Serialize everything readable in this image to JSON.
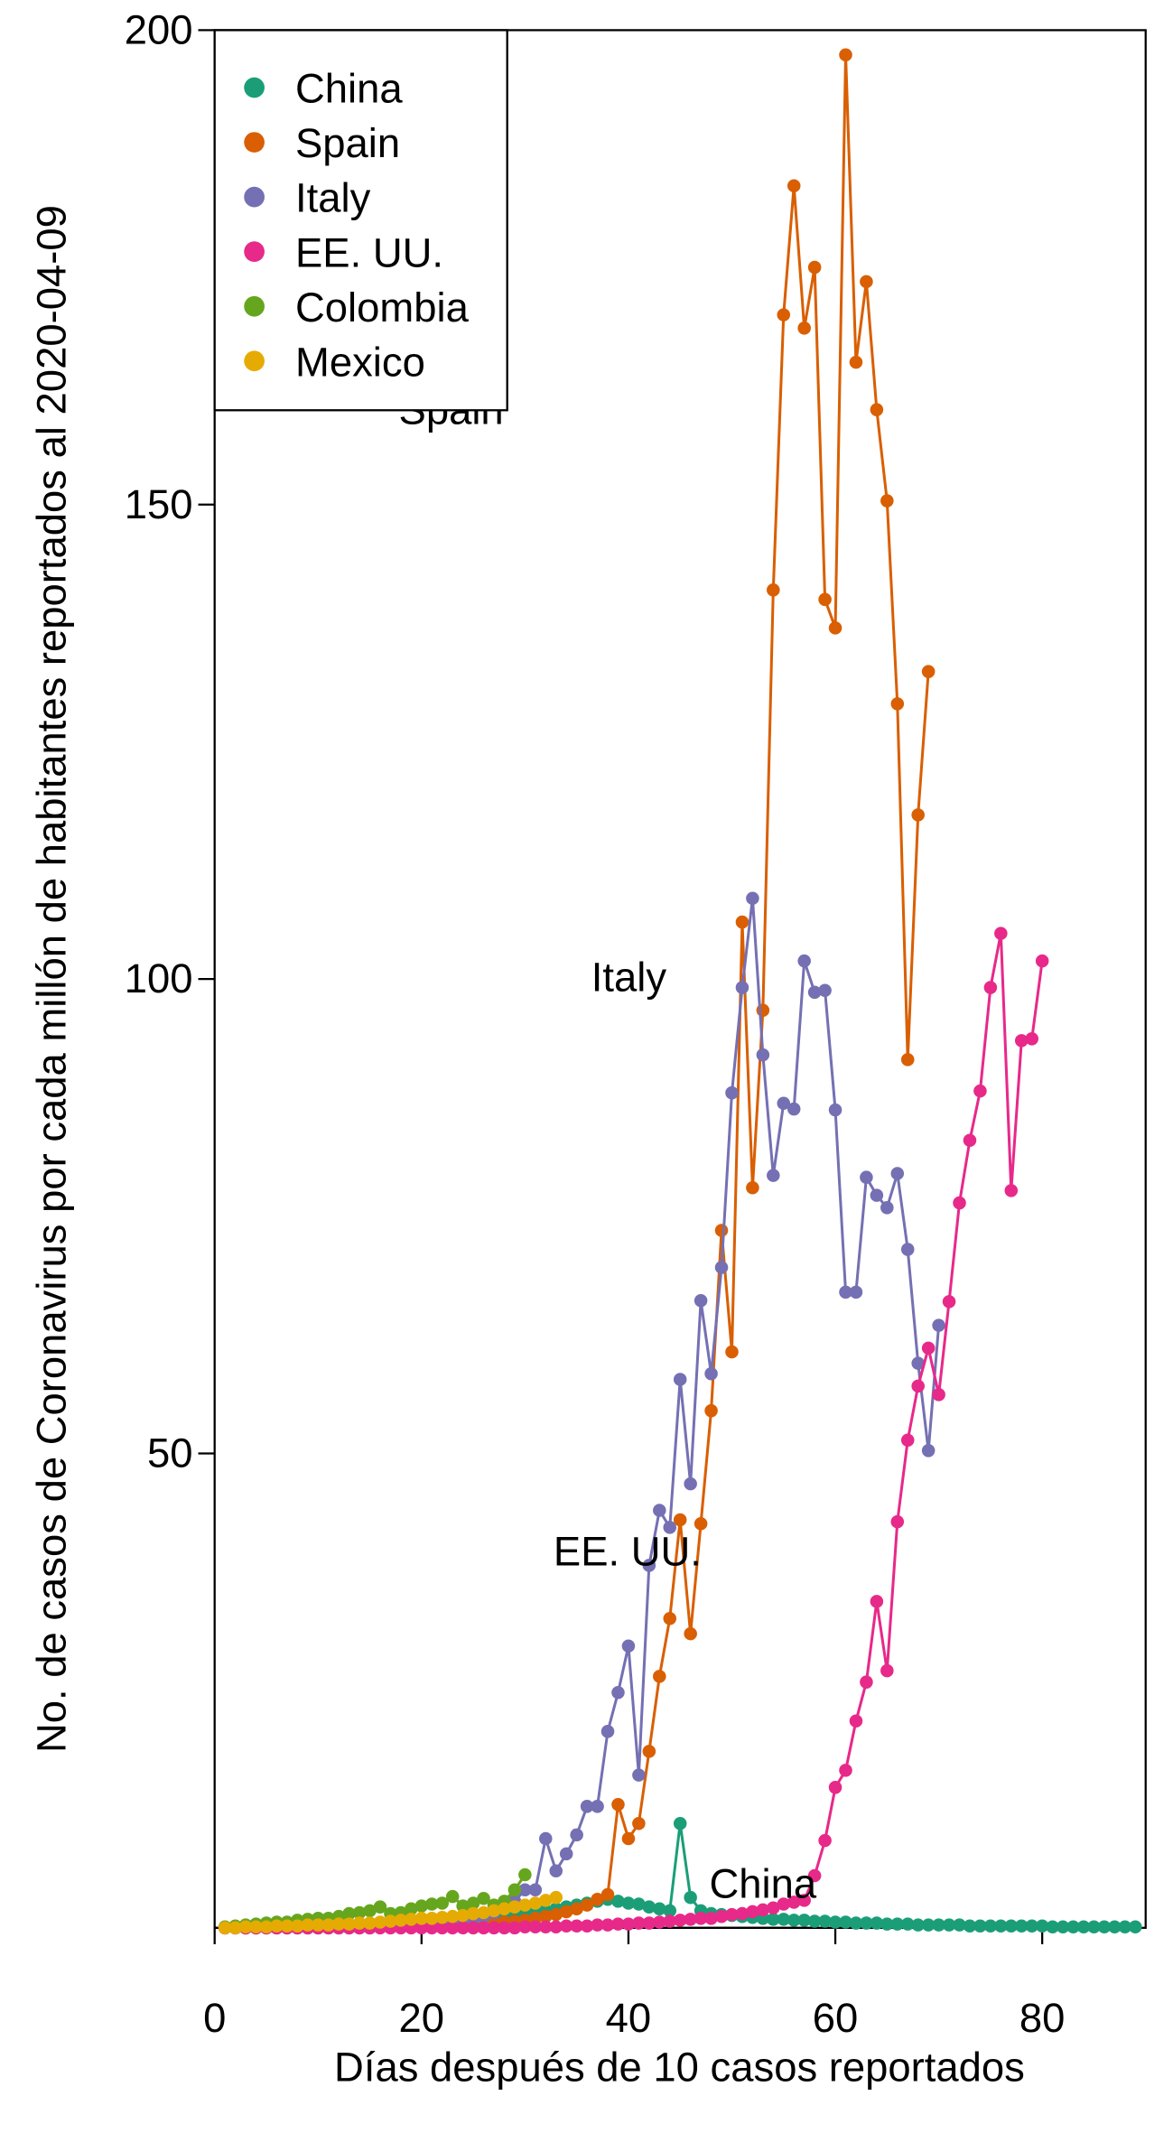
{
  "chart_data": {
    "type": "line",
    "xlabel": "Días después de 10 casos reportados",
    "ylabel": "No. de casos de Coronavirus por cada millón de habitantes reportados al 2020-04-09",
    "xlim": [
      0,
      90
    ],
    "xticks": [
      0,
      20,
      40,
      60,
      80
    ],
    "ylim": [
      0,
      200
    ],
    "yticks": [
      50,
      100,
      150,
      200
    ],
    "legend": "topleft",
    "annotations": [
      "Spain",
      "Italy",
      "EE. UU.",
      "China"
    ],
    "series": [
      {
        "name": "China",
        "color": "#1b9e77",
        "x": [
          1,
          2,
          3,
          4,
          5,
          6,
          7,
          8,
          9,
          10,
          11,
          12,
          13,
          14,
          15,
          16,
          17,
          18,
          19,
          20,
          21,
          22,
          23,
          24,
          25,
          26,
          27,
          28,
          29,
          30,
          31,
          32,
          33,
          34,
          35,
          36,
          37,
          38,
          39,
          40,
          41,
          42,
          43,
          44,
          45,
          46,
          47,
          48,
          49,
          50,
          51,
          52,
          53,
          54,
          55,
          56,
          57,
          58,
          59,
          60,
          61,
          62,
          63,
          64,
          65,
          66,
          67,
          68,
          69,
          70,
          71,
          72,
          73,
          74,
          75,
          76,
          77,
          78,
          79,
          80,
          81,
          82,
          83,
          84,
          85,
          86,
          87,
          88,
          89
        ],
        "values": [
          0,
          0,
          0,
          0,
          0.1,
          0.1,
          0.1,
          0.1,
          0.1,
          0.2,
          0.2,
          0.2,
          0.3,
          0.3,
          0.3,
          0.4,
          0.4,
          0.5,
          0.5,
          0.6,
          0.7,
          0.8,
          0.9,
          1,
          1,
          1.1,
          1.2,
          1.3,
          1.4,
          1.5,
          1.7,
          1.8,
          2,
          2.2,
          2.4,
          2.6,
          2.8,
          3,
          2.8,
          2.6,
          2.5,
          2.2,
          2,
          1.8,
          11,
          3.2,
          1.8,
          1.5,
          1.4,
          1.3,
          1.2,
          1.1,
          1,
          0.9,
          0.9,
          0.8,
          0.8,
          0.7,
          0.7,
          0.6,
          0.6,
          0.5,
          0.5,
          0.5,
          0.4,
          0.4,
          0.4,
          0.3,
          0.3,
          0.3,
          0.3,
          0.3,
          0.2,
          0.2,
          0.2,
          0.2,
          0.2,
          0.2,
          0.2,
          0.2,
          0.1,
          0.1,
          0.1,
          0.1,
          0.1,
          0.1,
          0.1,
          0.1,
          0.1
        ]
      },
      {
        "name": "Spain",
        "color": "#d95f02",
        "x": [
          1,
          2,
          3,
          4,
          5,
          6,
          7,
          8,
          9,
          10,
          11,
          12,
          13,
          14,
          15,
          16,
          17,
          18,
          19,
          20,
          21,
          22,
          23,
          24,
          25,
          26,
          27,
          28,
          29,
          30,
          31,
          32,
          33,
          34,
          35,
          36,
          37,
          38,
          39,
          40,
          41,
          42,
          43,
          44,
          45,
          46,
          47,
          48,
          49,
          50,
          51,
          52,
          53,
          54,
          55,
          56,
          57,
          58,
          59,
          60,
          61,
          62,
          63,
          64,
          65,
          66,
          67,
          68,
          69
        ],
        "values": [
          0,
          0,
          0,
          0,
          0,
          0,
          0,
          0,
          0,
          0,
          0,
          0,
          0.1,
          0.1,
          0.1,
          0.1,
          0.1,
          0.1,
          0.1,
          0.2,
          0.2,
          0.2,
          0.3,
          0.3,
          0.3,
          0.4,
          0.5,
          0.6,
          0.7,
          0.8,
          1,
          1.2,
          1.4,
          1.7,
          2,
          2.4,
          3,
          3.5,
          13,
          9.4,
          11,
          18.6,
          26.5,
          32.6,
          43,
          31,
          42.6,
          54.5,
          73.5,
          60.7,
          106,
          78,
          96.7,
          141,
          170,
          183.6,
          168.6,
          175,
          140,
          137,
          197.4,
          165,
          173.5,
          160,
          150.4,
          129,
          91.5,
          117.3,
          132.4
        ]
      },
      {
        "name": "Italy",
        "color": "#7570b3",
        "x": [
          1,
          2,
          3,
          4,
          5,
          6,
          7,
          8,
          9,
          10,
          11,
          12,
          13,
          14,
          15,
          16,
          17,
          18,
          19,
          20,
          21,
          22,
          23,
          24,
          25,
          26,
          27,
          28,
          29,
          30,
          31,
          32,
          33,
          34,
          35,
          36,
          37,
          38,
          39,
          40,
          41,
          42,
          43,
          44,
          45,
          46,
          47,
          48,
          49,
          50,
          51,
          52,
          53,
          54,
          55,
          56,
          57,
          58,
          59,
          60,
          61,
          62,
          63,
          64,
          65,
          66,
          67,
          68,
          69,
          70
        ],
        "values": [
          0,
          0,
          0,
          0,
          0,
          0,
          0,
          0,
          0,
          0,
          0,
          0,
          0,
          0,
          0,
          0.1,
          0.1,
          0.1,
          0.2,
          0.2,
          0.3,
          0.4,
          0.5,
          0.7,
          0.9,
          1.2,
          1.6,
          2.1,
          2.8,
          4,
          4,
          9.4,
          6,
          7.8,
          9.8,
          12.8,
          12.8,
          20.7,
          24.8,
          29.7,
          16.1,
          38.2,
          44,
          42.2,
          57.8,
          46.8,
          66.1,
          58.4,
          69.6,
          88,
          99.1,
          108.5,
          92,
          79.3,
          86.9,
          86.3,
          101.9,
          98.6,
          98.8,
          86.2,
          67,
          67,
          79.1,
          77.2,
          75.9,
          79.5,
          71.5,
          59.5,
          50.3,
          63.5
        ]
      },
      {
        "name": "EE. UU.",
        "color": "#e7298a",
        "x": [
          1,
          2,
          3,
          4,
          5,
          6,
          7,
          8,
          9,
          10,
          11,
          12,
          13,
          14,
          15,
          16,
          17,
          18,
          19,
          20,
          21,
          22,
          23,
          24,
          25,
          26,
          27,
          28,
          29,
          30,
          31,
          32,
          33,
          34,
          35,
          36,
          37,
          38,
          39,
          40,
          41,
          42,
          43,
          44,
          45,
          46,
          47,
          48,
          49,
          50,
          51,
          52,
          53,
          54,
          55,
          56,
          57,
          58,
          59,
          60,
          61,
          62,
          63,
          64,
          65,
          66,
          67,
          68,
          69,
          70,
          71,
          72,
          73,
          74,
          75,
          76,
          77,
          78,
          79,
          80
        ],
        "values": [
          0,
          0,
          0,
          0,
          0,
          0,
          0,
          0,
          0,
          0,
          0,
          0,
          0,
          0,
          0,
          0,
          0,
          0,
          0,
          0,
          0,
          0,
          0,
          0,
          0,
          0,
          0,
          0,
          0,
          0.1,
          0.1,
          0.1,
          0.1,
          0.2,
          0.2,
          0.2,
          0.3,
          0.3,
          0.4,
          0.4,
          0.5,
          0.5,
          0.6,
          0.7,
          0.8,
          0.9,
          1,
          1,
          1.2,
          1.4,
          1.5,
          1.7,
          1.9,
          2.1,
          2.5,
          2.7,
          2.9,
          5.5,
          9.2,
          14.8,
          16.6,
          21.8,
          25.9,
          34.4,
          27.1,
          42.8,
          51.4,
          57.1,
          61.1,
          56.2,
          66,
          76.4,
          83,
          88.2,
          99.1,
          104.8,
          77.7,
          93.5,
          93.7,
          101.9
        ]
      },
      {
        "name": "Colombia",
        "color": "#66a61e",
        "x": [
          1,
          2,
          3,
          4,
          5,
          6,
          7,
          8,
          9,
          10,
          11,
          12,
          13,
          14,
          15,
          16,
          17,
          18,
          19,
          20,
          21,
          22,
          23,
          24,
          25,
          26,
          27,
          28,
          29,
          30
        ],
        "values": [
          0.1,
          0.2,
          0.3,
          0.4,
          0.5,
          0.6,
          0.6,
          0.8,
          0.9,
          1,
          1,
          1.2,
          1.5,
          1.6,
          1.8,
          2.2,
          1.5,
          1.6,
          2,
          2.3,
          2.5,
          2.6,
          3.3,
          2.3,
          2.6,
          3.1,
          2.4,
          2.8,
          4,
          5.6
        ]
      },
      {
        "name": "Mexico",
        "color": "#e6ab02",
        "x": [
          1,
          2,
          3,
          4,
          5,
          6,
          7,
          8,
          9,
          10,
          11,
          12,
          13,
          14,
          15,
          16,
          17,
          18,
          19,
          20,
          21,
          22,
          23,
          24,
          25,
          26,
          27,
          28,
          29,
          30,
          31,
          32,
          33
        ],
        "values": [
          0,
          0,
          0.1,
          0.1,
          0.1,
          0.2,
          0.2,
          0.2,
          0.3,
          0.3,
          0.3,
          0.4,
          0.4,
          0.5,
          0.5,
          0.6,
          0.7,
          0.8,
          0.9,
          1,
          1,
          1.1,
          1.2,
          1.3,
          1.5,
          1.6,
          1.8,
          2,
          2.2,
          2.4,
          2.6,
          2.9,
          3.2
        ]
      }
    ]
  }
}
